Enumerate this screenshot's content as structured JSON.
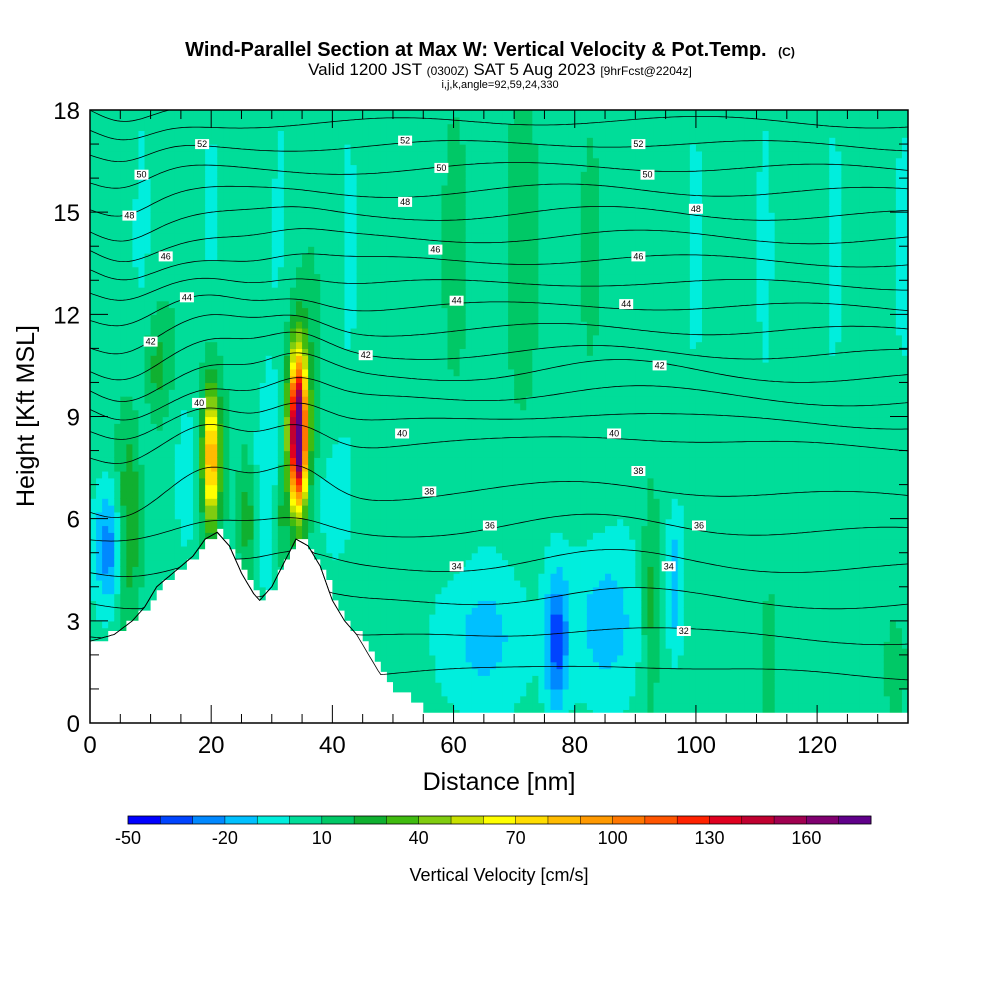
{
  "chart_data": {
    "type": "heatmap",
    "title_main": "Wind-Parallel Section at Max W: Vertical Velocity & Pot.Temp.",
    "title_copyright": "(C)",
    "subtitle_parts": {
      "valid": "Valid 1200 JST",
      "zulu": "(0300Z)",
      "date": "SAT 5 Aug 2023",
      "fcst": "[9hrFcst@2204z]"
    },
    "ijk_line": "i,j,k,angle=92,59,24,330",
    "xlabel": "Distance [nm]",
    "ylabel": "Height [Kft MSL]",
    "xlim": [
      0,
      135
    ],
    "ylim": [
      0,
      18
    ],
    "x_ticks": [
      "0",
      "20",
      "40",
      "60",
      "80",
      "100",
      "120"
    ],
    "x_tick_values": [
      0,
      20,
      40,
      60,
      80,
      100,
      120
    ],
    "y_ticks": [
      "0",
      "3",
      "6",
      "9",
      "12",
      "15",
      "18"
    ],
    "y_tick_values": [
      0,
      3,
      6,
      9,
      12,
      15,
      18
    ],
    "colorbar": {
      "label": "Vertical Velocity [cm/s]",
      "tick_labels": [
        "-50",
        "-20",
        "10",
        "40",
        "70",
        "100",
        "130",
        "160"
      ],
      "tick_values": [
        -50,
        -20,
        10,
        40,
        70,
        100,
        130,
        160
      ],
      "min": -50,
      "max": 180,
      "step": 10,
      "colors": [
        "#0000ff",
        "#0044ff",
        "#0088ff",
        "#00c0ff",
        "#00eedd",
        "#00dd99",
        "#00c866",
        "#10b030",
        "#40bb10",
        "#80cc10",
        "#c8e000",
        "#ffff00",
        "#ffdd00",
        "#ffbb00",
        "#ff9900",
        "#ff7700",
        "#ff5500",
        "#ff2200",
        "#e00020",
        "#c00030",
        "#a00050",
        "#800070",
        "#60008a"
      ]
    },
    "terrain_profile": [
      [
        0,
        2.4
      ],
      [
        4,
        2.6
      ],
      [
        7,
        3.0
      ],
      [
        9,
        3.4
      ],
      [
        11,
        4.0
      ],
      [
        13,
        4.3
      ],
      [
        15,
        4.6
      ],
      [
        17,
        4.9
      ],
      [
        19,
        5.4
      ],
      [
        21,
        5.6
      ],
      [
        23,
        5.2
      ],
      [
        25,
        4.4
      ],
      [
        27,
        3.8
      ],
      [
        28,
        3.6
      ],
      [
        30,
        4.0
      ],
      [
        32,
        4.7
      ],
      [
        34,
        5.4
      ],
      [
        36,
        5.2
      ],
      [
        38,
        4.6
      ],
      [
        40,
        3.6
      ],
      [
        42,
        3.0
      ],
      [
        44,
        2.6
      ],
      [
        46,
        2.0
      ],
      [
        48,
        1.4
      ],
      [
        50,
        1.0
      ],
      [
        52,
        0.8
      ],
      [
        54,
        0.5
      ],
      [
        56,
        0.3
      ],
      [
        60,
        0.2
      ],
      [
        135,
        0.2
      ]
    ],
    "theta_labels": [
      {
        "text": "52",
        "x": 18.5,
        "y": 17.0
      },
      {
        "text": "52",
        "x": 52.0,
        "y": 17.1
      },
      {
        "text": "52",
        "x": 90.5,
        "y": 17.0
      },
      {
        "text": "50",
        "x": 8.5,
        "y": 16.1
      },
      {
        "text": "50",
        "x": 58.0,
        "y": 16.3
      },
      {
        "text": "50",
        "x": 92.0,
        "y": 16.1
      },
      {
        "text": "48",
        "x": 6.5,
        "y": 14.9
      },
      {
        "text": "48",
        "x": 52.0,
        "y": 15.3
      },
      {
        "text": "48",
        "x": 100.0,
        "y": 15.1
      },
      {
        "text": "46",
        "x": 12.5,
        "y": 13.7
      },
      {
        "text": "46",
        "x": 57.0,
        "y": 13.9
      },
      {
        "text": "46",
        "x": 90.5,
        "y": 13.7
      },
      {
        "text": "44",
        "x": 16.0,
        "y": 12.5
      },
      {
        "text": "44",
        "x": 60.5,
        "y": 12.4
      },
      {
        "text": "44",
        "x": 88.5,
        "y": 12.3
      },
      {
        "text": "42",
        "x": 10.0,
        "y": 11.2
      },
      {
        "text": "42",
        "x": 45.5,
        "y": 10.8
      },
      {
        "text": "42",
        "x": 94.0,
        "y": 10.5
      },
      {
        "text": "40",
        "x": 18.0,
        "y": 9.4
      },
      {
        "text": "40",
        "x": 51.5,
        "y": 8.5
      },
      {
        "text": "40",
        "x": 86.5,
        "y": 8.5
      },
      {
        "text": "38",
        "x": 56.0,
        "y": 6.8
      },
      {
        "text": "38",
        "x": 90.5,
        "y": 7.4
      },
      {
        "text": "36",
        "x": 66.0,
        "y": 5.8
      },
      {
        "text": "36",
        "x": 100.5,
        "y": 5.8
      },
      {
        "text": "34",
        "x": 60.5,
        "y": 4.6
      },
      {
        "text": "34",
        "x": 95.5,
        "y": 4.6
      },
      {
        "text": "32",
        "x": 98.0,
        "y": 2.7
      }
    ],
    "theta_levels": [
      32,
      33,
      34,
      35,
      36,
      37,
      38,
      39,
      40,
      41,
      42,
      43,
      44,
      45,
      46,
      47,
      48,
      49,
      50,
      51,
      52,
      53
    ]
  }
}
